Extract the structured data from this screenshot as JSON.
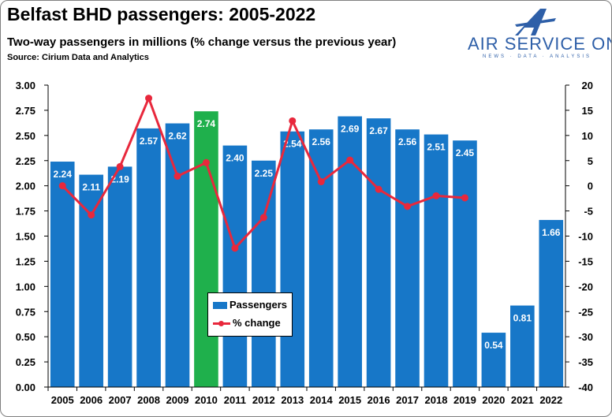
{
  "header": {
    "title": "Belfast BHD passengers: 2005-2022",
    "subtitle": "Two-way passengers in millions (% change versus the previous year)",
    "source": "Source: Cirium Data and Analytics"
  },
  "logo": {
    "brand": "AIR SERVICE ONE",
    "tagline": "NEWS · DATA · ANALYSIS",
    "icon": "stylised-a-plane-icon",
    "color": "#2e5fa8"
  },
  "legend": {
    "passengers": "Passengers",
    "change": "% change"
  },
  "colors": {
    "bar": "#1777c8",
    "highlight_bar": "#1fb04c",
    "line": "#e8283c"
  },
  "chart_data": {
    "type": "bar",
    "categories": [
      "2005",
      "2006",
      "2007",
      "2008",
      "2009",
      "2010",
      "2011",
      "2012",
      "2013",
      "2014",
      "2015",
      "2016",
      "2017",
      "2018",
      "2019",
      "2020",
      "2021",
      "2022"
    ],
    "series": [
      {
        "name": "Passengers",
        "type": "bar",
        "axis": "left",
        "values": [
          2.24,
          2.11,
          2.19,
          2.57,
          2.62,
          2.74,
          2.4,
          2.25,
          2.54,
          2.56,
          2.69,
          2.67,
          2.56,
          2.51,
          2.45,
          0.54,
          0.81,
          1.66
        ],
        "labels": [
          "2.24",
          "2.11",
          "2.19",
          "2.57",
          "2.62",
          "2.74",
          "2.40",
          "2.25",
          "2.54",
          "2.56",
          "2.69",
          "2.67",
          "2.56",
          "2.51",
          "2.45",
          "0.54",
          "0.81",
          "1.66"
        ],
        "highlight": "2010"
      },
      {
        "name": "% change",
        "type": "line",
        "axis": "right",
        "values": [
          0,
          -5.8,
          3.8,
          17.4,
          1.9,
          4.6,
          -12.4,
          -6.3,
          12.9,
          0.8,
          5.1,
          -0.7,
          -4.1,
          -2.0,
          -2.4,
          null,
          null,
          null
        ]
      }
    ],
    "ylim": [
      0,
      3.0
    ],
    "yticks": [
      "0.00",
      "0.25",
      "0.50",
      "0.75",
      "1.00",
      "1.25",
      "1.50",
      "1.75",
      "2.00",
      "2.25",
      "2.50",
      "2.75",
      "3.00"
    ],
    "y2lim": [
      -40,
      20
    ],
    "y2ticks": [
      "-40",
      "-35",
      "-30",
      "-25",
      "-20",
      "-15",
      "-10",
      "-5",
      "0",
      "5",
      "10",
      "15",
      "20"
    ],
    "legend_position": "center-left",
    "grid": false
  }
}
